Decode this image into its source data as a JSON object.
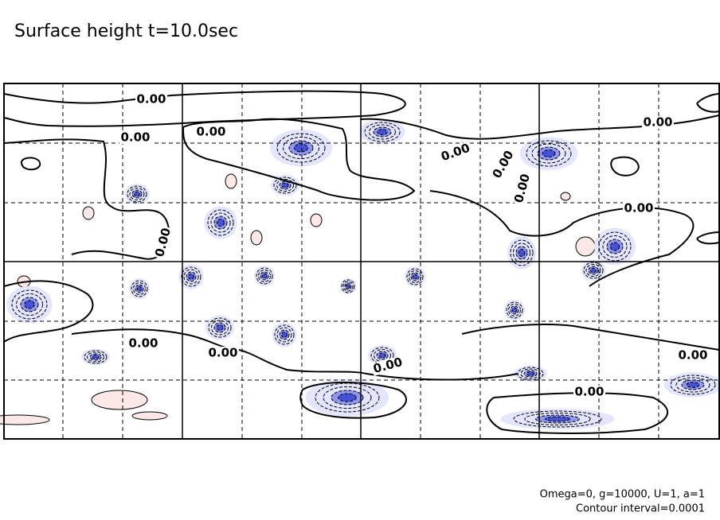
{
  "chart_data": {
    "type": "contour",
    "title": "Surface height t=10.0sec",
    "contour_labels": [
      "0.00",
      "0.00",
      "0.00",
      "0.00",
      "0.00",
      "0.00",
      "0.00",
      "0.00",
      "0.00",
      "0.00",
      "0.00",
      "0.00",
      "0.00",
      "0.00"
    ],
    "notes": [
      "Omega=0, g=10000, U=1, a=1",
      "Contour interval=0.0001"
    ],
    "grid": true
  }
}
